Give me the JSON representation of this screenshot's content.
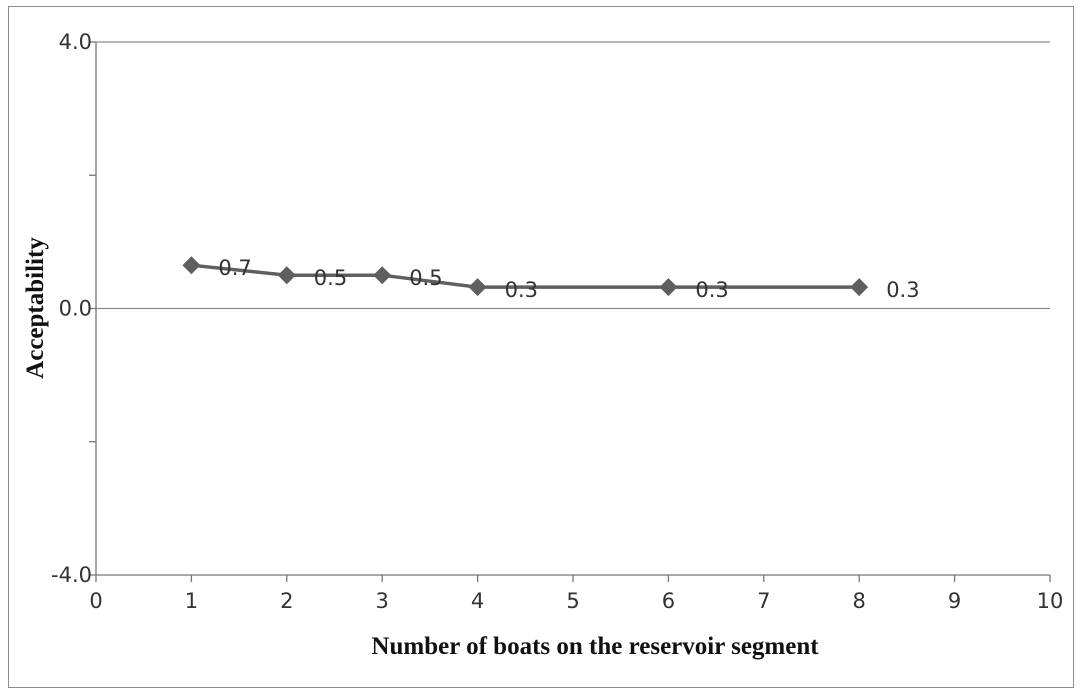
{
  "chart_data": {
    "type": "line",
    "title": "",
    "xlabel": "Number  of boats on the reservoir  segment",
    "ylabel": "Acceptability",
    "xlim": [
      0,
      10
    ],
    "ylim": [
      -4.0,
      4.0
    ],
    "x_ticks": [
      "0",
      "1",
      "2",
      "3",
      "4",
      "5",
      "6",
      "7",
      "8",
      "9",
      "10"
    ],
    "y_ticks": [
      "4.0",
      "0.0",
      "-4.0"
    ],
    "series": [
      {
        "x": [
          1,
          2,
          3,
          4,
          6,
          8
        ],
        "values": [
          0.65,
          0.5,
          0.5,
          0.32,
          0.32,
          0.32
        ],
        "labels": [
          "0.7",
          "0.5",
          "0.5",
          "0.3",
          "0.3",
          "0.3"
        ],
        "color": "#5f5f5f",
        "marker": "diamond"
      }
    ],
    "grid": "horizontal major at 4.0, 0.0",
    "legend": "none"
  }
}
